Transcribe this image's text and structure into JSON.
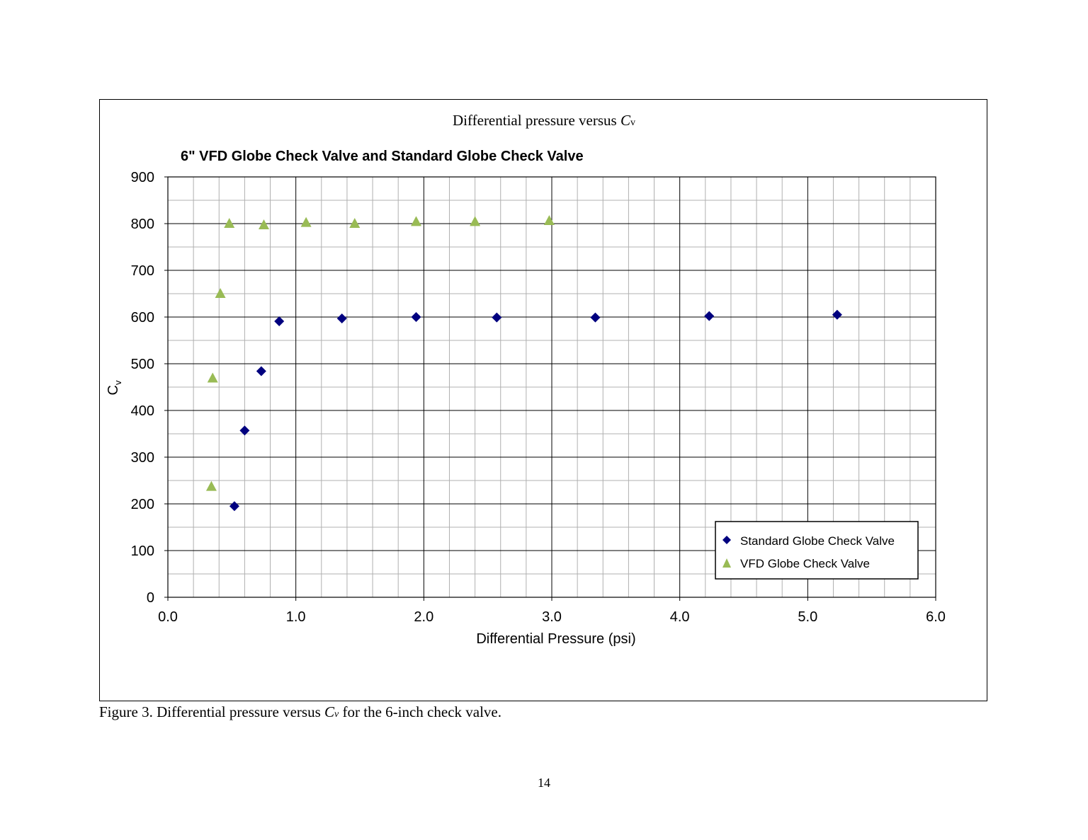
{
  "figure": {
    "box_title_main": "Differential pressure versus ",
    "box_title_var": "C",
    "box_title_sub": "v",
    "caption_pre": "Figure 3.  Differential pressure versus ",
    "caption_var": "C",
    "caption_sub": "v",
    "caption_post": " for the 6-inch check valve.",
    "page_number": "14"
  },
  "chart_data": {
    "type": "scatter",
    "title": "6\" VFD Globe Check Valve and Standard Globe Check Valve",
    "xlabel": "Differential Pressure (psi)",
    "ylabel_main": "C",
    "ylabel_sub": "v",
    "xlim": [
      0,
      6
    ],
    "ylim": [
      0,
      900
    ],
    "x_major_step": 1,
    "x_minor_step": 0.2,
    "y_major_step": 100,
    "y_minor_step": 50,
    "x_tick_labels": [
      "0.0",
      "1.0",
      "2.0",
      "3.0",
      "4.0",
      "5.0",
      "6.0"
    ],
    "y_tick_labels": [
      "0",
      "100",
      "200",
      "300",
      "400",
      "500",
      "600",
      "700",
      "800",
      "900"
    ],
    "grid": true,
    "legend_position": "bottom-right",
    "series": [
      {
        "name": "Standard Globe Check Valve",
        "marker": "diamond",
        "color": "#00007f",
        "points": [
          [
            0.52,
            195
          ],
          [
            0.6,
            357
          ],
          [
            0.73,
            484
          ],
          [
            0.87,
            591
          ],
          [
            1.36,
            597
          ],
          [
            1.94,
            600
          ],
          [
            2.57,
            599
          ],
          [
            3.34,
            599
          ],
          [
            4.23,
            602
          ],
          [
            5.23,
            605
          ]
        ]
      },
      {
        "name": "VFD Globe Check Valve",
        "marker": "triangle",
        "color": "#99bb55",
        "points": [
          [
            0.34,
            237
          ],
          [
            0.35,
            469
          ],
          [
            0.41,
            650
          ],
          [
            0.48,
            800
          ],
          [
            0.75,
            797
          ],
          [
            1.08,
            802
          ],
          [
            1.46,
            800
          ],
          [
            1.94,
            804
          ],
          [
            2.4,
            804
          ],
          [
            2.98,
            806
          ]
        ]
      }
    ]
  }
}
